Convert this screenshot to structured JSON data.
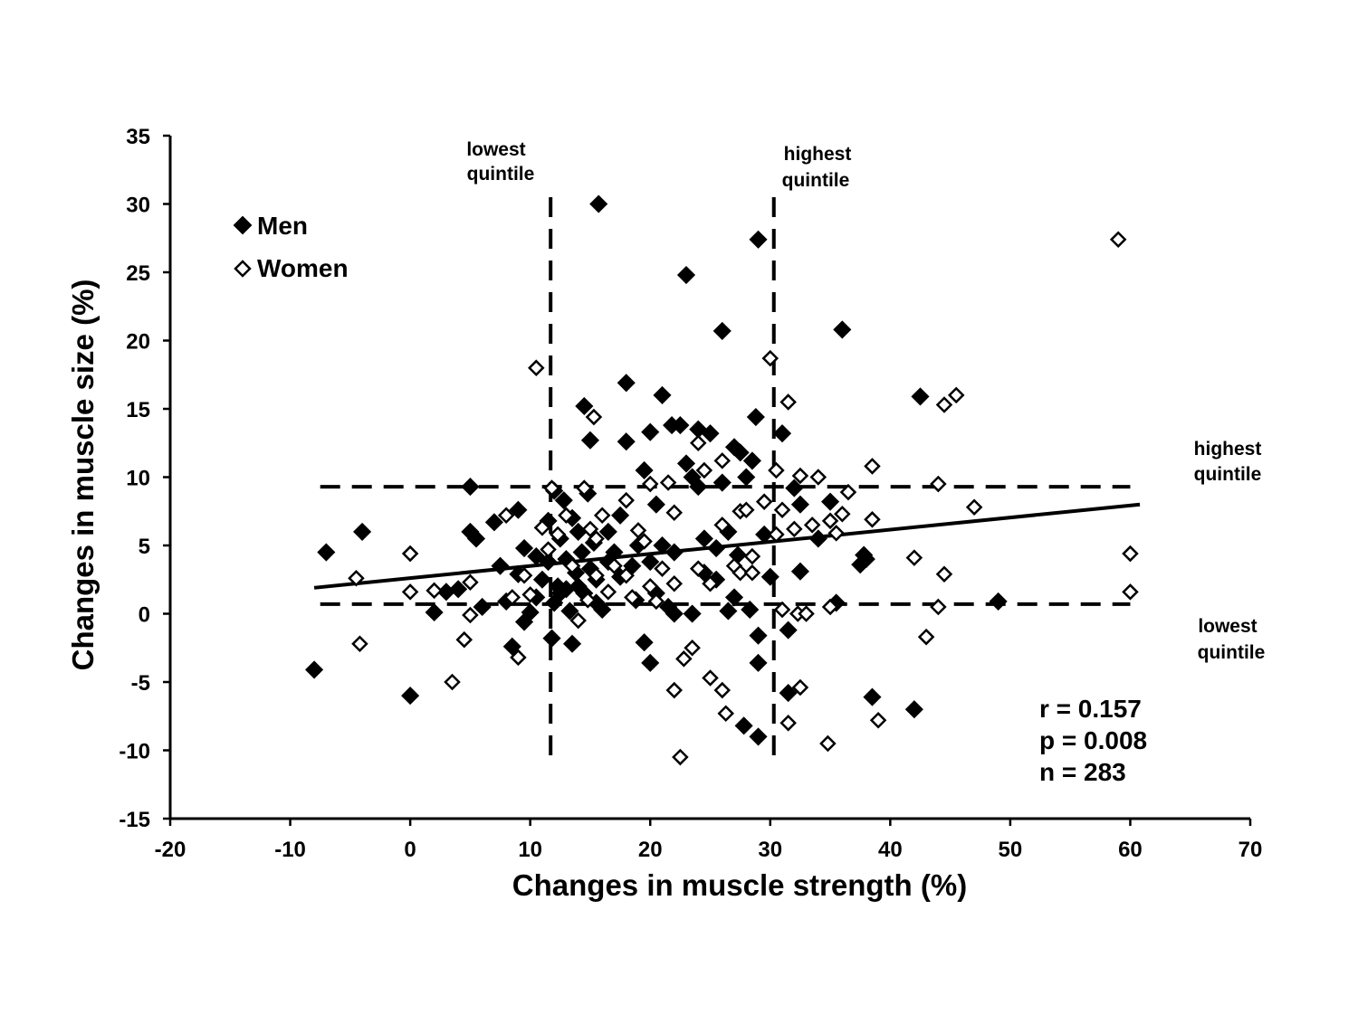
{
  "chart_data": {
    "type": "scatter",
    "xlabel": "Changes in muscle strength (%)",
    "ylabel": "Changes in muscle size (%)",
    "xlim": [
      -20,
      70
    ],
    "ylim": [
      -15,
      35
    ],
    "xticks": [
      "-20",
      "-10",
      "0",
      "10",
      "20",
      "30",
      "40",
      "50",
      "60",
      "70"
    ],
    "yticks": [
      "35",
      "30",
      "25",
      "20",
      "15",
      "10",
      "5",
      "0",
      "-5",
      "-10",
      "-15"
    ],
    "legend": {
      "placement": "top-left",
      "items": [
        "Men",
        "Women"
      ]
    },
    "annotations": {
      "vertical_low": [
        "lowest",
        "quintile"
      ],
      "vertical_high": [
        "highest",
        "quintile"
      ],
      "horizontal_high": [
        "highest",
        "quintile"
      ],
      "horizontal_low": [
        "lowest",
        "quintile"
      ]
    },
    "quintile_lines": {
      "x_low": 11.7,
      "x_high": 30.3,
      "y_low": 0.7,
      "y_high": 9.3,
      "x_range": [
        -7.5,
        60
      ],
      "y_range": [
        -11,
        30.5
      ]
    },
    "trendline": {
      "x": [
        -8,
        60.8
      ],
      "y": [
        1.9,
        8.0
      ]
    },
    "stats": {
      "r": "r = 0.157",
      "p": "p = 0.008",
      "n": "n = 283"
    },
    "series": [
      {
        "name": "Men",
        "marker": "filled-diamond",
        "color": "#000000",
        "points": [
          [
            -8,
            -4.1
          ],
          [
            -7,
            4.5
          ],
          [
            -4,
            6
          ],
          [
            0,
            -6
          ],
          [
            2,
            0.1
          ],
          [
            3,
            1.6
          ],
          [
            4,
            1.8
          ],
          [
            5,
            9.3
          ],
          [
            5,
            6
          ],
          [
            5.5,
            5.5
          ],
          [
            6,
            0.5
          ],
          [
            7,
            6.7
          ],
          [
            7.5,
            3.5
          ],
          [
            8,
            0.9
          ],
          [
            8.5,
            -2.4
          ],
          [
            9,
            7.6
          ],
          [
            9,
            2.9
          ],
          [
            9.5,
            -0.6
          ],
          [
            9.5,
            4.8
          ],
          [
            10,
            0.1
          ],
          [
            10.5,
            4.2
          ],
          [
            10.5,
            1.2
          ],
          [
            11,
            2.5
          ],
          [
            11.5,
            3.8
          ],
          [
            11.5,
            6.8
          ],
          [
            11.8,
            -1.8
          ],
          [
            12,
            0.8
          ],
          [
            12,
            9
          ],
          [
            12.3,
            2
          ],
          [
            12.5,
            5.5
          ],
          [
            12.5,
            1.5
          ],
          [
            12.8,
            8.3
          ],
          [
            13,
            4
          ],
          [
            13,
            1.8
          ],
          [
            13.3,
            0.2
          ],
          [
            13.5,
            -2.2
          ],
          [
            13.5,
            7
          ],
          [
            13.8,
            3
          ],
          [
            14,
            6
          ],
          [
            14,
            2
          ],
          [
            14.3,
            4.5
          ],
          [
            14.5,
            15.2
          ],
          [
            14.5,
            1.5
          ],
          [
            14.8,
            8.8
          ],
          [
            15,
            12.7
          ],
          [
            15,
            3.3
          ],
          [
            15.3,
            5.2
          ],
          [
            15.5,
            2.5
          ],
          [
            15.5,
            0.8
          ],
          [
            15.7,
            30
          ],
          [
            16,
            0.3
          ],
          [
            16.5,
            3.8
          ],
          [
            16.5,
            6
          ],
          [
            17,
            4.5
          ],
          [
            17.5,
            2.7
          ],
          [
            17.5,
            7.2
          ],
          [
            18,
            16.9
          ],
          [
            18,
            12.6
          ],
          [
            18.5,
            3.5
          ],
          [
            18.8,
            1
          ],
          [
            19,
            5
          ],
          [
            19.5,
            10.5
          ],
          [
            19.5,
            -2.1
          ],
          [
            20,
            3.8
          ],
          [
            20,
            13.3
          ],
          [
            20,
            -3.6
          ],
          [
            20.5,
            8
          ],
          [
            20.5,
            1.5
          ],
          [
            21,
            16
          ],
          [
            21,
            5
          ],
          [
            21.5,
            0.5
          ],
          [
            21.8,
            13.8
          ],
          [
            22,
            4.5
          ],
          [
            22,
            0
          ],
          [
            22.5,
            13.8
          ],
          [
            23,
            11
          ],
          [
            23,
            24.8
          ],
          [
            23.5,
            10
          ],
          [
            23.5,
            0
          ],
          [
            24,
            9.3
          ],
          [
            24,
            13.5
          ],
          [
            24.5,
            5.5
          ],
          [
            24.5,
            3
          ],
          [
            25,
            13.2
          ],
          [
            25.5,
            4.8
          ],
          [
            25.5,
            2.5
          ],
          [
            26,
            20.7
          ],
          [
            26,
            9.6
          ],
          [
            26.5,
            6
          ],
          [
            26.5,
            0.2
          ],
          [
            27,
            12.2
          ],
          [
            27,
            1.2
          ],
          [
            27.3,
            4.3
          ],
          [
            27.5,
            11.8
          ],
          [
            27.8,
            -8.2
          ],
          [
            28,
            10
          ],
          [
            28.3,
            0.3
          ],
          [
            28.5,
            11.2
          ],
          [
            28.8,
            14.4
          ],
          [
            29,
            27.4
          ],
          [
            29,
            -3.6
          ],
          [
            29,
            -1.6
          ],
          [
            29,
            -9
          ],
          [
            29.5,
            5.8
          ],
          [
            30,
            2.7
          ],
          [
            31,
            13.2
          ],
          [
            31.5,
            -5.8
          ],
          [
            31.5,
            -1.2
          ],
          [
            32,
            9.2
          ],
          [
            32.5,
            8
          ],
          [
            32.5,
            3.1
          ],
          [
            34,
            5.5
          ],
          [
            35,
            8.2
          ],
          [
            35.5,
            0.8
          ],
          [
            36,
            20.8
          ],
          [
            37.5,
            3.6
          ],
          [
            37.8,
            4.3
          ],
          [
            38,
            4
          ],
          [
            38.5,
            -6.1
          ],
          [
            42,
            -7
          ],
          [
            42.5,
            15.9
          ],
          [
            49,
            0.9
          ]
        ]
      },
      {
        "name": "Women",
        "marker": "open-diamond",
        "color": "#000000",
        "points": [
          [
            -4.5,
            2.6
          ],
          [
            -4.2,
            -2.2
          ],
          [
            0,
            4.4
          ],
          [
            0,
            1.6
          ],
          [
            2,
            1.7
          ],
          [
            3.5,
            -5
          ],
          [
            4.5,
            -1.9
          ],
          [
            5,
            2.3
          ],
          [
            5,
            -0.1
          ],
          [
            8,
            7.2
          ],
          [
            8.5,
            1.2
          ],
          [
            9,
            -3.2
          ],
          [
            9.5,
            2.8
          ],
          [
            10,
            1.4
          ],
          [
            10.5,
            18
          ],
          [
            11,
            6.3
          ],
          [
            11.5,
            4.7
          ],
          [
            11.8,
            9.2
          ],
          [
            12.3,
            5.8
          ],
          [
            13,
            7.2
          ],
          [
            13.5,
            3.5
          ],
          [
            14,
            -0.5
          ],
          [
            14.5,
            9.2
          ],
          [
            14.8,
            1
          ],
          [
            15,
            6.2
          ],
          [
            15.3,
            14.4
          ],
          [
            15.5,
            2.8
          ],
          [
            15.5,
            5.5
          ],
          [
            16,
            7.2
          ],
          [
            16.5,
            1.6
          ],
          [
            17,
            3.5
          ],
          [
            18,
            2.8
          ],
          [
            18,
            8.3
          ],
          [
            18.5,
            1.2
          ],
          [
            19,
            6.1
          ],
          [
            19.5,
            5.3
          ],
          [
            20,
            2
          ],
          [
            20,
            9.5
          ],
          [
            20.5,
            0.9
          ],
          [
            21,
            3.3
          ],
          [
            21.5,
            9.6
          ],
          [
            22,
            7.4
          ],
          [
            22,
            2.2
          ],
          [
            22,
            -5.6
          ],
          [
            22.5,
            -10.5
          ],
          [
            22.8,
            -3.3
          ],
          [
            23.5,
            -2.5
          ],
          [
            24,
            12.5
          ],
          [
            24,
            3.3
          ],
          [
            24.5,
            10.5
          ],
          [
            25,
            2.2
          ],
          [
            25,
            -4.7
          ],
          [
            26,
            11.2
          ],
          [
            26,
            6.5
          ],
          [
            26,
            -5.6
          ],
          [
            26.3,
            -7.3
          ],
          [
            27,
            3.5
          ],
          [
            27.5,
            7.5
          ],
          [
            27.5,
            3
          ],
          [
            28,
            7.6
          ],
          [
            28.5,
            4.2
          ],
          [
            28.5,
            3
          ],
          [
            29.5,
            8.2
          ],
          [
            30,
            18.7
          ],
          [
            30.5,
            10.5
          ],
          [
            30.5,
            5.8
          ],
          [
            31,
            0.3
          ],
          [
            31,
            7.6
          ],
          [
            31.5,
            -8
          ],
          [
            31.5,
            15.5
          ],
          [
            32,
            6.2
          ],
          [
            32.3,
            0
          ],
          [
            32.5,
            10.1
          ],
          [
            32.5,
            -5.4
          ],
          [
            33,
            0
          ],
          [
            33.5,
            6.5
          ],
          [
            34,
            10
          ],
          [
            34.8,
            -9.5
          ],
          [
            35,
            0.5
          ],
          [
            35,
            6.8
          ],
          [
            35.5,
            5.9
          ],
          [
            36,
            7.3
          ],
          [
            36.5,
            8.9
          ],
          [
            38.5,
            10.8
          ],
          [
            38.5,
            6.9
          ],
          [
            39,
            -7.8
          ],
          [
            42,
            4.1
          ],
          [
            43,
            -1.7
          ],
          [
            44,
            9.5
          ],
          [
            44,
            0.5
          ],
          [
            44.5,
            2.9
          ],
          [
            44.5,
            15.3
          ],
          [
            45.5,
            16
          ],
          [
            47,
            7.8
          ],
          [
            59,
            27.4
          ],
          [
            60,
            4.4
          ],
          [
            60,
            1.6
          ]
        ]
      }
    ]
  }
}
